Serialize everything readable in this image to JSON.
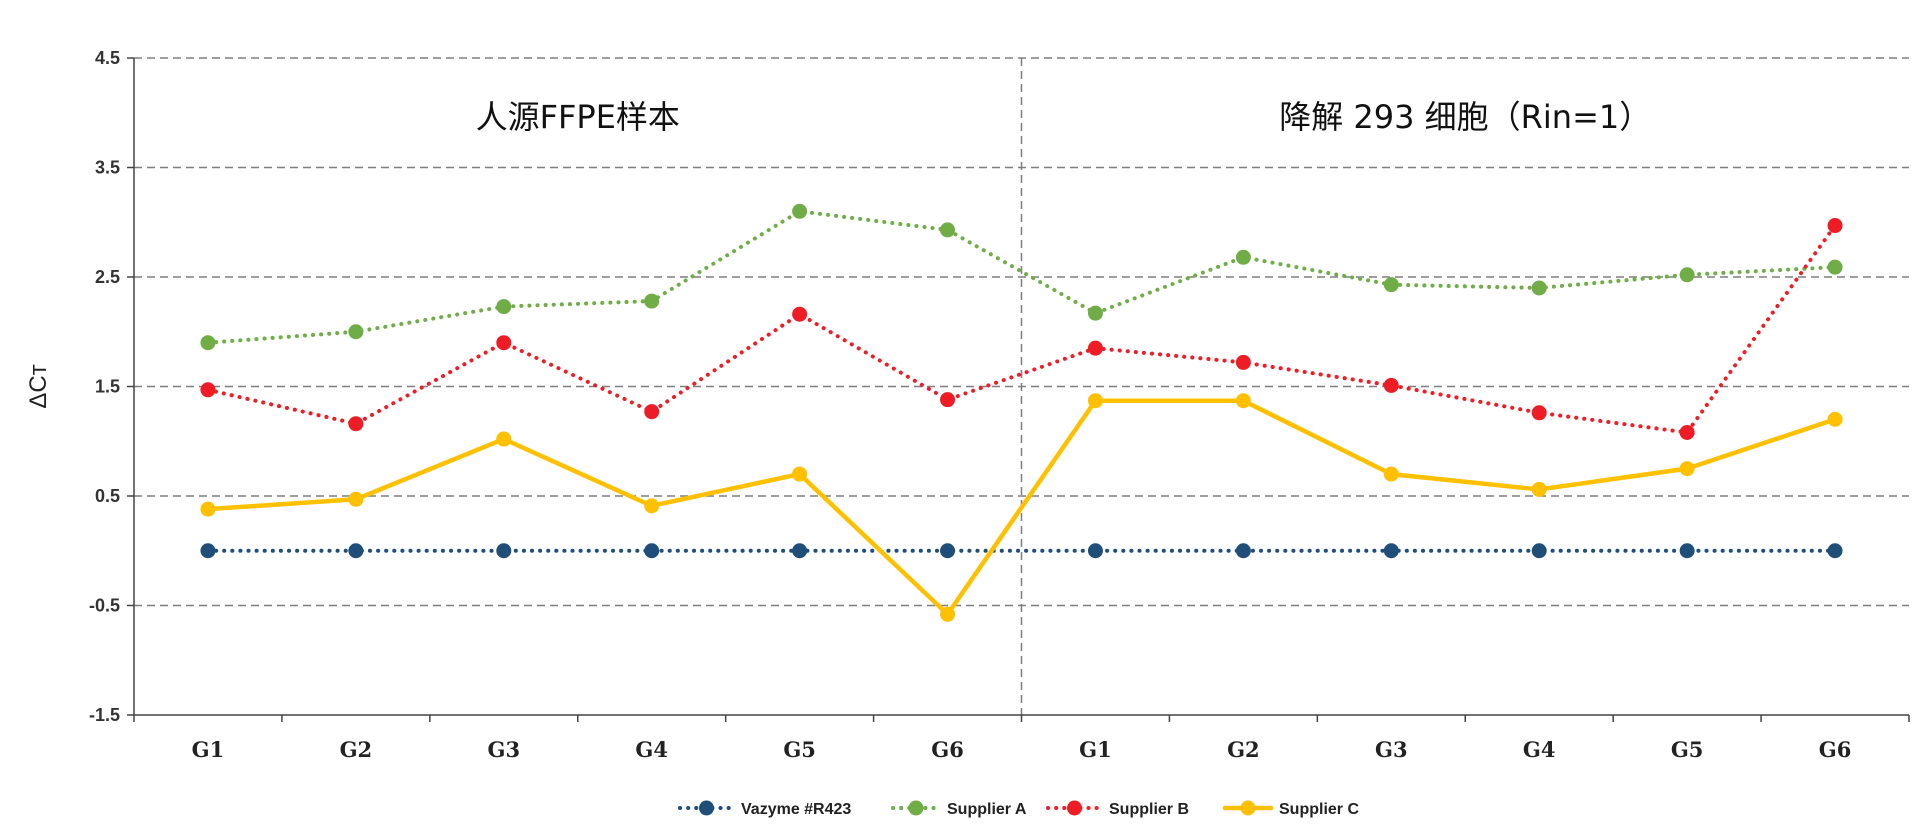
{
  "chart_data": {
    "type": "line",
    "ylabel": "ΔCт",
    "ylim": [
      -1.5,
      4.5
    ],
    "yticks": [
      "4.5",
      "3.5",
      "2.5",
      "1.5",
      "0.5",
      "-0.5",
      "-1.5"
    ],
    "ytick_values": [
      4.5,
      3.5,
      2.5,
      1.5,
      0.5,
      -0.5,
      -1.5
    ],
    "categories": [
      "G1",
      "G2",
      "G3",
      "G4",
      "G5",
      "G6",
      "G1",
      "G2",
      "G3",
      "G4",
      "G5",
      "G6"
    ],
    "panels": [
      {
        "label": "人源FFPE样本"
      },
      {
        "label": "降解 293 细胞（Rin=1）"
      }
    ],
    "grid": true,
    "legend_position": "bottom-center",
    "series": [
      {
        "name": "Vazyme #R423",
        "color": "#1f4e79",
        "style": "dotted",
        "values": [
          0.0,
          0.0,
          0.0,
          0.0,
          0.0,
          0.0,
          0.0,
          0.0,
          0.0,
          0.0,
          0.0,
          0.0
        ]
      },
      {
        "name": "Supplier A",
        "color": "#70ad47",
        "style": "dotted",
        "values": [
          1.9,
          2.0,
          2.23,
          2.28,
          3.1,
          2.93,
          2.17,
          2.68,
          2.43,
          2.4,
          2.52,
          2.59
        ]
      },
      {
        "name": "Supplier B",
        "color": "#ee1c25",
        "style": "dotted",
        "values": [
          1.47,
          1.16,
          1.9,
          1.27,
          2.16,
          1.38,
          1.85,
          1.72,
          1.51,
          1.26,
          1.08,
          2.97
        ]
      },
      {
        "name": "Supplier C",
        "color": "#ffc000",
        "style": "solid",
        "values": [
          0.38,
          0.47,
          1.02,
          0.41,
          0.7,
          -0.58,
          1.37,
          1.37,
          0.7,
          0.56,
          0.75,
          1.2
        ]
      }
    ]
  }
}
